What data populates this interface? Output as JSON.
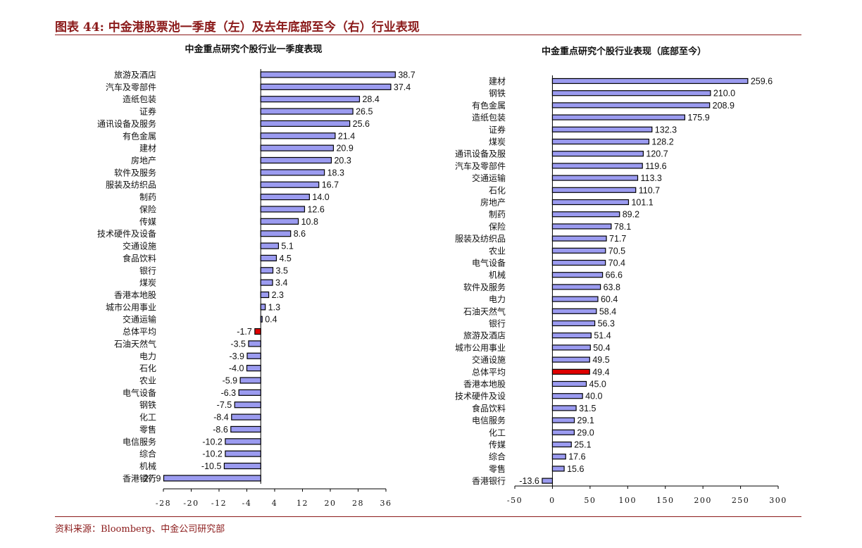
{
  "header": {
    "title": "图表 44:  中金港股票池一季度（左）及去年底部至今（右）行业表现"
  },
  "footer": {
    "source": "资料来源：Bloomberg、中金公司研究部"
  },
  "colors": {
    "bar_fill": "#9b9bf0",
    "bar_highlight": "#e00000",
    "bar_stroke": "#000000",
    "header_color": "#8b1a1a"
  },
  "chart_data": [
    {
      "type": "bar",
      "orientation": "horizontal",
      "title": "中金重点研究个股行业一季度表现",
      "xlim": [
        -28,
        36
      ],
      "xticks": [
        -28,
        -20,
        -12,
        -4,
        4,
        12,
        20,
        28,
        36
      ],
      "highlight": "总体平均",
      "categories": [
        "旅游及酒店",
        "汽车及零部件",
        "造纸包装",
        "证券",
        "通讯设备及服务",
        "有色金属",
        "建材",
        "房地产",
        "软件及服务",
        "服装及纺织品",
        "制药",
        "保险",
        "传媒",
        "技术硬件及设备",
        "交通设施",
        "食品饮料",
        "银行",
        "煤炭",
        "香港本地股",
        "城市公用事业",
        "交通运输",
        "总体平均",
        "石油天然气",
        "电力",
        "石化",
        "农业",
        "电气设备",
        "钢铁",
        "化工",
        "零售",
        "电信服务",
        "综合",
        "机械",
        "香港银行"
      ],
      "values": [
        38.7,
        37.4,
        28.4,
        26.5,
        25.6,
        21.4,
        20.9,
        20.3,
        18.3,
        16.7,
        14.0,
        12.6,
        10.8,
        8.6,
        5.1,
        4.5,
        3.5,
        3.4,
        2.3,
        1.3,
        0.4,
        -1.7,
        -3.5,
        -3.9,
        -4.0,
        -5.9,
        -6.3,
        -7.5,
        -8.4,
        -8.6,
        -10.2,
        -10.2,
        -10.5,
        -27.9
      ]
    },
    {
      "type": "bar",
      "orientation": "horizontal",
      "title": "中金重点研究个股行业表现（底部至今）",
      "xlim": [
        -50,
        300
      ],
      "xticks": [
        -50,
        0,
        50,
        100,
        150,
        200,
        250,
        300
      ],
      "highlight": "总体平均",
      "categories": [
        "建材",
        "钢铁",
        "有色金属",
        "造纸包装",
        "证券",
        "煤炭",
        "通讯设备及服",
        "汽车及零部件",
        "交通运输",
        "石化",
        "房地产",
        "制药",
        "保险",
        "服装及纺织品",
        "农业",
        "电气设备",
        "机械",
        "软件及服务",
        "电力",
        "石油天然气",
        "银行",
        "旅游及酒店",
        "城市公用事业",
        "交通设施",
        "总体平均",
        "香港本地股",
        "技术硬件及设",
        "食品饮料",
        "电信服务",
        "化工",
        "传媒",
        "综合",
        "零售",
        "香港银行"
      ],
      "values": [
        259.6,
        210.0,
        208.9,
        175.9,
        132.3,
        128.2,
        120.7,
        119.6,
        113.3,
        110.7,
        101.1,
        89.2,
        78.1,
        71.7,
        70.5,
        70.4,
        66.6,
        63.8,
        60.4,
        58.4,
        56.3,
        51.4,
        50.4,
        49.5,
        49.4,
        45.0,
        40.0,
        31.5,
        29.1,
        29.0,
        25.1,
        17.6,
        15.6,
        -13.6
      ]
    }
  ]
}
